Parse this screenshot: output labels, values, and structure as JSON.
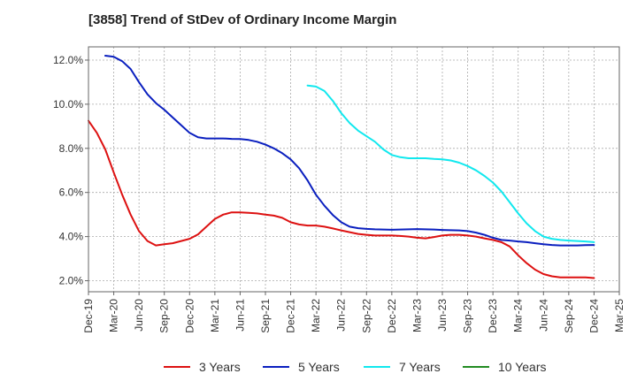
{
  "title": "[3858]  Trend of StDev of Ordinary Income Margin",
  "chart_data": {
    "type": "line",
    "title": "[3858]  Trend of StDev of Ordinary Income Margin",
    "xlabel": "",
    "ylabel": "",
    "x_tick_labels": [
      "Dec-19",
      "Mar-20",
      "Jun-20",
      "Sep-20",
      "Dec-20",
      "Mar-21",
      "Jun-21",
      "Sep-21",
      "Dec-21",
      "Mar-22",
      "Jun-22",
      "Sep-22",
      "Dec-22",
      "Mar-23",
      "Jun-23",
      "Sep-23",
      "Dec-23",
      "Mar-24",
      "Jun-24",
      "Sep-24",
      "Dec-24",
      "Mar-25"
    ],
    "y_tick_labels": [
      "2.0%",
      "4.0%",
      "6.0%",
      "8.0%",
      "10.0%",
      "12.0%"
    ],
    "y_ticks": [
      2,
      4,
      6,
      8,
      10,
      12
    ],
    "ylim": [
      1.5,
      12.6
    ],
    "grid": true,
    "legend_position": "bottom",
    "series": [
      {
        "name": "3 Years",
        "color": "#dd1111",
        "x": [
          "Dec-19",
          "Jan-20",
          "Feb-20",
          "Mar-20",
          "Apr-20",
          "May-20",
          "Jun-20",
          "Jul-20",
          "Aug-20",
          "Sep-20",
          "Oct-20",
          "Nov-20",
          "Dec-20",
          "Jan-21",
          "Feb-21",
          "Mar-21",
          "Apr-21",
          "May-21",
          "Jun-21",
          "Jul-21",
          "Aug-21",
          "Sep-21",
          "Oct-21",
          "Nov-21",
          "Dec-21",
          "Jan-22",
          "Feb-22",
          "Mar-22",
          "Apr-22",
          "May-22",
          "Jun-22",
          "Jul-22",
          "Aug-22",
          "Sep-22",
          "Oct-22",
          "Nov-22",
          "Dec-22",
          "Jan-23",
          "Feb-23",
          "Mar-23",
          "Apr-23",
          "May-23",
          "Jun-23",
          "Jul-23",
          "Aug-23",
          "Sep-23",
          "Oct-23",
          "Nov-23",
          "Dec-23",
          "Jan-24",
          "Feb-24",
          "Mar-24",
          "Apr-24",
          "May-24",
          "Jun-24",
          "Jul-24",
          "Aug-24",
          "Sep-24",
          "Oct-24",
          "Nov-24",
          "Dec-24"
        ],
        "values": [
          9.25,
          8.7,
          7.95,
          6.9,
          5.9,
          5.0,
          4.25,
          3.8,
          3.6,
          3.65,
          3.7,
          3.8,
          3.9,
          4.1,
          4.45,
          4.8,
          5.0,
          5.1,
          5.1,
          5.08,
          5.05,
          5.0,
          4.95,
          4.85,
          4.65,
          4.55,
          4.5,
          4.5,
          4.45,
          4.37,
          4.28,
          4.2,
          4.12,
          4.08,
          4.05,
          4.05,
          4.05,
          4.03,
          4.0,
          3.95,
          3.92,
          3.98,
          4.05,
          4.08,
          4.08,
          4.05,
          4.0,
          3.92,
          3.85,
          3.75,
          3.55,
          3.15,
          2.8,
          2.5,
          2.3,
          2.2,
          2.15,
          2.15,
          2.15,
          2.15,
          2.12
        ]
      },
      {
        "name": "5 Years",
        "color": "#0a1fbf",
        "x": [
          "Feb-20",
          "Mar-20",
          "Apr-20",
          "May-20",
          "Jun-20",
          "Jul-20",
          "Aug-20",
          "Sep-20",
          "Oct-20",
          "Nov-20",
          "Dec-20",
          "Jan-21",
          "Feb-21",
          "Mar-21",
          "Apr-21",
          "May-21",
          "Jun-21",
          "Jul-21",
          "Aug-21",
          "Sep-21",
          "Oct-21",
          "Nov-21",
          "Dec-21",
          "Jan-22",
          "Feb-22",
          "Mar-22",
          "Apr-22",
          "May-22",
          "Jun-22",
          "Jul-22",
          "Aug-22",
          "Sep-22",
          "Oct-22",
          "Nov-22",
          "Dec-22",
          "Jan-23",
          "Feb-23",
          "Mar-23",
          "Apr-23",
          "May-23",
          "Jun-23",
          "Jul-23",
          "Aug-23",
          "Sep-23",
          "Oct-23",
          "Nov-23",
          "Dec-23",
          "Jan-24",
          "Feb-24",
          "Mar-24",
          "Apr-24",
          "May-24",
          "Jun-24",
          "Jul-24",
          "Aug-24",
          "Sep-24",
          "Oct-24",
          "Nov-24",
          "Dec-24"
        ],
        "values": [
          12.2,
          12.15,
          11.95,
          11.6,
          11.0,
          10.45,
          10.05,
          9.75,
          9.4,
          9.05,
          8.7,
          8.5,
          8.45,
          8.45,
          8.45,
          8.43,
          8.42,
          8.38,
          8.3,
          8.17,
          8.0,
          7.78,
          7.5,
          7.1,
          6.55,
          5.9,
          5.4,
          4.98,
          4.65,
          4.45,
          4.38,
          4.35,
          4.33,
          4.32,
          4.31,
          4.32,
          4.33,
          4.34,
          4.33,
          4.32,
          4.3,
          4.29,
          4.28,
          4.25,
          4.18,
          4.08,
          3.95,
          3.85,
          3.82,
          3.78,
          3.75,
          3.7,
          3.65,
          3.62,
          3.6,
          3.6,
          3.6,
          3.61,
          3.62
        ]
      },
      {
        "name": "7 Years",
        "color": "#11e8ee",
        "x": [
          "Feb-22",
          "Mar-22",
          "Apr-22",
          "May-22",
          "Jun-22",
          "Jul-22",
          "Aug-22",
          "Sep-22",
          "Oct-22",
          "Nov-22",
          "Dec-22",
          "Jan-23",
          "Feb-23",
          "Mar-23",
          "Apr-23",
          "May-23",
          "Jun-23",
          "Jul-23",
          "Aug-23",
          "Sep-23",
          "Oct-23",
          "Nov-23",
          "Dec-23",
          "Jan-24",
          "Feb-24",
          "Mar-24",
          "Apr-24",
          "May-24",
          "Jun-24",
          "Jul-24",
          "Aug-24",
          "Sep-24",
          "Oct-24",
          "Nov-24",
          "Dec-24"
        ],
        "values": [
          10.85,
          10.8,
          10.6,
          10.15,
          9.6,
          9.15,
          8.8,
          8.55,
          8.3,
          7.95,
          7.7,
          7.6,
          7.55,
          7.55,
          7.55,
          7.52,
          7.5,
          7.45,
          7.35,
          7.2,
          7.0,
          6.75,
          6.45,
          6.05,
          5.55,
          5.05,
          4.6,
          4.25,
          4.0,
          3.9,
          3.85,
          3.82,
          3.8,
          3.78,
          3.75
        ]
      },
      {
        "name": "10 Years",
        "color": "#228b22",
        "x": [],
        "values": []
      }
    ]
  }
}
